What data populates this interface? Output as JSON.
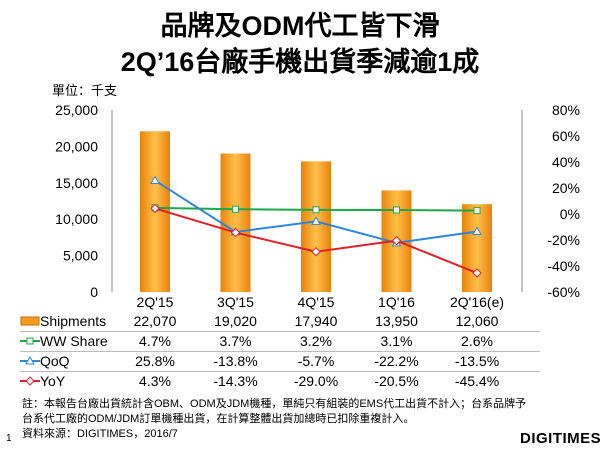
{
  "title_line1": "品牌及ODM代工皆下滑",
  "title_line2": "2Q’16台廠手機出貨季減逾1成",
  "unit_label": "單位：千支",
  "page_number": "1",
  "logo": "DIGITIMES",
  "note_line1": "註：本報告台廠出貨統計含OBM、ODM及JDM機種，單純只有組裝的EMS代工出貨不計入；台系品牌予",
  "note_line2": "台系代工廠的ODM/JDM訂單機種出貨，在計算整體出貨加總時已扣除重複計入。",
  "source": "資料來源：DIGITIMES，2016/7",
  "chart_data": {
    "type": "bar+line",
    "categories": [
      "2Q'15",
      "3Q'15",
      "4Q'15",
      "1Q'16",
      "2Q'16(e)"
    ],
    "left_axis": {
      "ylim": [
        0,
        25000
      ],
      "ticks": [
        "0",
        "5,000",
        "10,000",
        "15,000",
        "20,000",
        "25,000"
      ]
    },
    "right_axis": {
      "ylim": [
        -60,
        80
      ],
      "ticks": [
        "-60%",
        "-40%",
        "-20%",
        "0%",
        "20%",
        "40%",
        "60%",
        "80%"
      ]
    },
    "series": [
      {
        "name": "Shipments",
        "type": "bar",
        "axis": "left",
        "color": "#F39C1E",
        "values": [
          22070,
          19020,
          17940,
          13950,
          12060
        ],
        "labels": [
          "22,070",
          "19,020",
          "17,940",
          "13,950",
          "12,060"
        ]
      },
      {
        "name": "WW Share",
        "type": "line",
        "axis": "right",
        "color": "#1FA64A",
        "values": [
          4.7,
          3.7,
          3.2,
          3.1,
          2.6
        ],
        "labels": [
          "4.7%",
          "3.7%",
          "3.2%",
          "3.1%",
          "2.6%"
        ]
      },
      {
        "name": "QoQ",
        "type": "line",
        "axis": "right",
        "color": "#2F86D6",
        "values": [
          25.8,
          -13.8,
          -5.7,
          -22.2,
          -13.5
        ],
        "labels": [
          "25.8%",
          "-13.8%",
          "-5.7%",
          "-22.2%",
          "-13.5%"
        ]
      },
      {
        "name": "YoY",
        "type": "line",
        "axis": "right",
        "color": "#E0202A",
        "values": [
          4.3,
          -14.3,
          -29.0,
          -20.5,
          -45.4
        ],
        "labels": [
          "4.3%",
          "-14.3%",
          "-29.0%",
          "-20.5%",
          "-45.4%"
        ]
      }
    ],
    "grid": false,
    "legend": "data-table"
  }
}
